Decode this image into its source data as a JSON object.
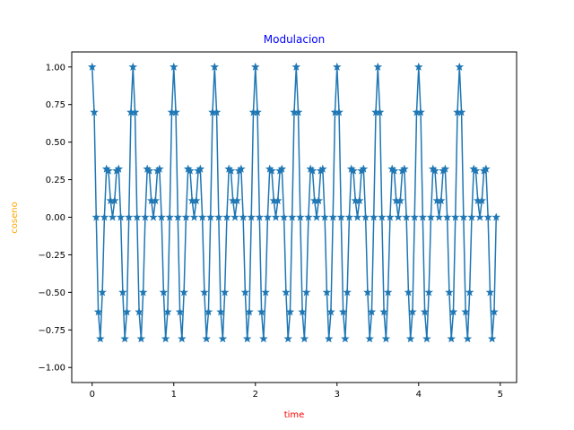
{
  "chart_data": {
    "type": "line",
    "title": "Modulacion",
    "title_color": "#0000ff",
    "xlabel": "time",
    "xlabel_color": "#ff0000",
    "ylabel": "coseno",
    "ylabel_color": "#ffa500",
    "xlim": [
      -0.25,
      5.2
    ],
    "ylim": [
      -1.1,
      1.1
    ],
    "xticks": [
      0,
      1,
      2,
      3,
      4,
      5
    ],
    "xtick_labels": [
      "0",
      "1",
      "2",
      "3",
      "4",
      "5"
    ],
    "yticks": [
      -1.0,
      -0.75,
      -0.5,
      -0.25,
      0.0,
      0.25,
      0.5,
      0.75,
      1.0
    ],
    "ytick_labels": [
      "−1.00",
      "−0.75",
      "−0.50",
      "−0.25",
      "0.00",
      "0.25",
      "0.50",
      "0.75",
      "1.00"
    ],
    "grid": false,
    "series": [
      {
        "color": "#1f77b4",
        "marker": "star",
        "model": "y = cos(2*pi*1*t) * cos(2*pi*5*t)",
        "x_start": 0,
        "x_end": 4.95,
        "x_step": 0.025
      }
    ]
  }
}
